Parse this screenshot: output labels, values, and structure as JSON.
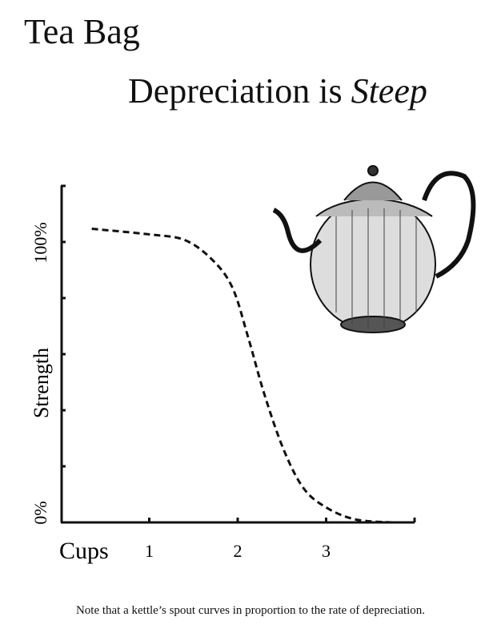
{
  "chart_data": {
    "type": "line",
    "title_line1": "Tea Bag",
    "title_line2": "Depreciation is",
    "title_emphasis": "Steep",
    "xlabel": "Cups",
    "ylabel": "Strength",
    "x_ticks": [
      "1",
      "2",
      "3"
    ],
    "y_ticks": [
      "0%",
      "100%"
    ],
    "xlim": [
      0,
      4
    ],
    "ylim": [
      0,
      120
    ],
    "line_style": "dashed",
    "series": [
      {
        "x": [
          0.35,
          1.0,
          1.4,
          1.71,
          1.94,
          2.12,
          2.3,
          2.52,
          2.75,
          3.02,
          3.34,
          3.75
        ],
        "y": [
          105,
          103,
          101,
          94,
          84,
          66,
          46,
          26,
          12,
          5,
          1,
          0
        ]
      }
    ],
    "grid": false,
    "color": "#111111"
  },
  "illustration": "teapot-engraving",
  "footnote": "Note that a kettle’s spout curves in proportion to the rate of depreciation."
}
